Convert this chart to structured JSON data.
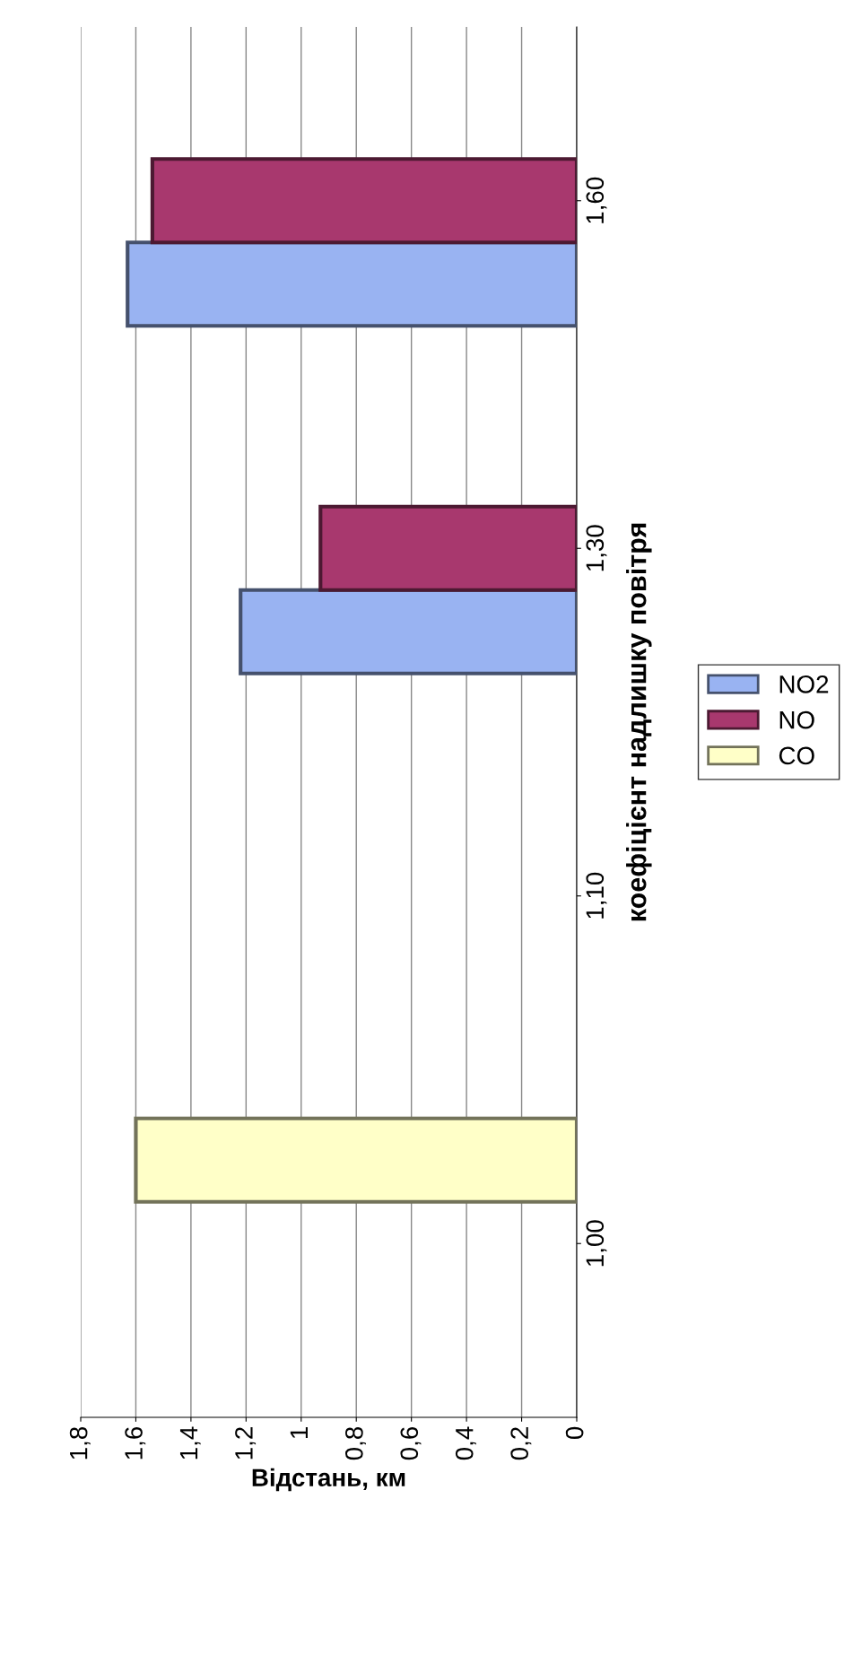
{
  "chart_data": {
    "type": "bar",
    "orientation": "horizontal",
    "xlabel": "Відстань, км",
    "ylabel": "коефіцієнт надлишку повітря",
    "categories": [
      "1,60",
      "1,30",
      "1,10",
      "1,00"
    ],
    "series": [
      {
        "name": "NO2",
        "color": "#99b3f2",
        "values": [
          1.63,
          1.22,
          null,
          null
        ]
      },
      {
        "name": "NO",
        "color": "#a8386e",
        "values": [
          1.54,
          0.93,
          null,
          null
        ]
      },
      {
        "name": "CO",
        "color": "#ffffc8",
        "values": [
          null,
          null,
          null,
          1.6
        ]
      }
    ],
    "xlim": [
      1.8,
      0
    ],
    "xticks": [
      {
        "value": 1.8,
        "label": "1,8"
      },
      {
        "value": 1.6,
        "label": "1,6"
      },
      {
        "value": 1.4,
        "label": "1,4"
      },
      {
        "value": 1.2,
        "label": "1,2"
      },
      1,
      {
        "value": 0.8,
        "label": "0,8"
      },
      {
        "value": 0.6,
        "label": "0,6"
      },
      {
        "value": 0.4,
        "label": "0,4"
      },
      {
        "value": 0.2,
        "label": "0,2"
      },
      0
    ],
    "grid": "x",
    "legend": "right"
  }
}
